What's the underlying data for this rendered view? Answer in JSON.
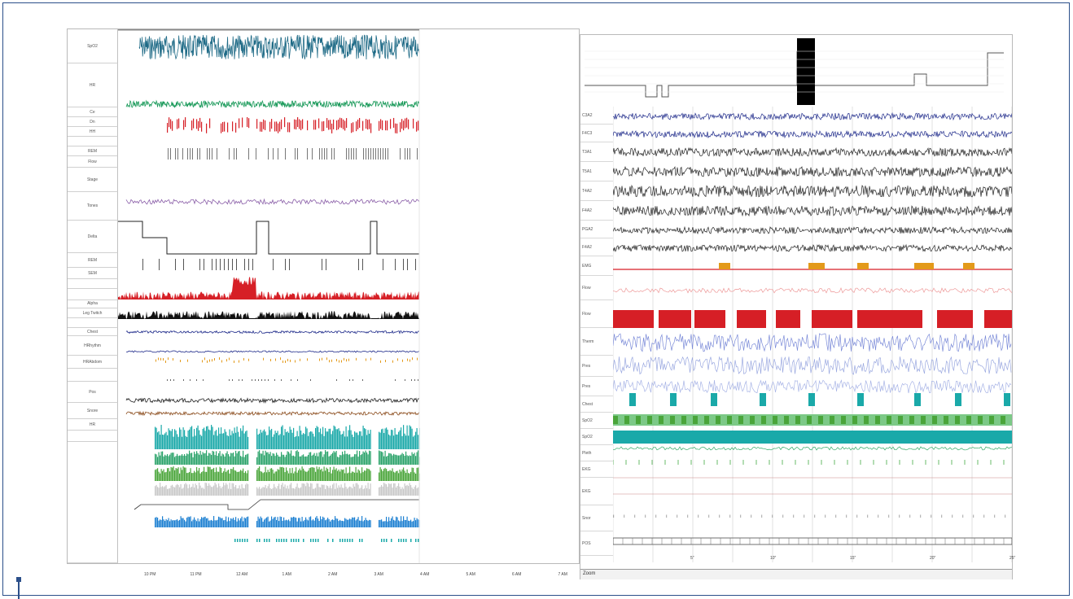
{
  "left": {
    "channels": [
      "SpO2",
      "HR",
      "Ce",
      "Dn",
      "HH",
      "",
      "REM",
      "Flow",
      "Stage",
      "Tones",
      "Delta",
      "REM",
      "SEM",
      "",
      "",
      "Alpha",
      "Leg Twitch",
      "",
      "Chest",
      "HRhythm",
      "HRAbdom",
      "",
      "Pos",
      "Snore",
      "HR",
      ""
    ],
    "time_ticks": [
      "10 PM",
      "11 PM",
      "12 AM",
      "1 AM",
      "2 AM",
      "3 AM",
      "4 AM",
      "5 AM",
      "6 AM",
      "7 AM"
    ]
  },
  "right": {
    "channels": [
      "C3A2",
      "F4C3",
      "T3A1",
      "T5A1",
      "T4A2",
      "F4A2",
      "PGA2",
      "F4A2",
      "EMG",
      "Flow",
      "Flow",
      "Therm",
      "Pres",
      "Pres",
      "Chest",
      "SpO2",
      "SpO2",
      "Pleth",
      "EKG",
      "EKG",
      "Snor",
      "POS"
    ],
    "time_ticks": [
      "5\"",
      "10\"",
      "15\"",
      "20\"",
      "25\""
    ],
    "scrollbar_label": "Zoom"
  },
  "colors": {
    "frame": "#2b4f8a",
    "spo2": "#1e6a86",
    "hr": "#1a9a5a",
    "events_red": "#d61f26",
    "eeg": "#1e2a8a",
    "teal": "#1aa9a9",
    "green": "#4aa53a",
    "orange": "#e39a1a",
    "blue": "#1c7fd1"
  }
}
